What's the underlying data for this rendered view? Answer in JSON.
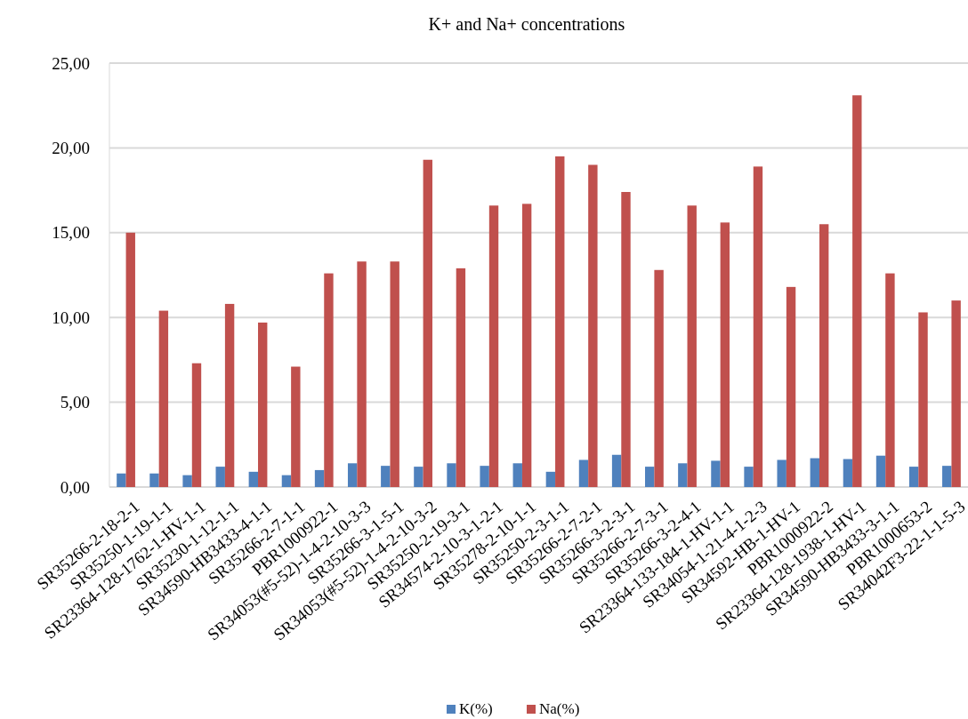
{
  "chart_data": {
    "type": "bar",
    "title": "K+ and Na+ concentrations",
    "categories": [
      "SR35266-2-18-2-1",
      "SR35250-1-19-1-1",
      "SR23364-128-1762-1-HV-1-1",
      "SR35230-1-12-1-1",
      "SR34590-HB3433-4-1-1",
      "SR35266-2-7-1-1",
      "PBR1000922-1",
      "SR34053(#5-52)-1-4-2-10-3-3",
      "SR35266-3-1-5-1",
      "SR34053(#5-52)-1-4-2-10-3-2",
      "SR35250-2-19-3-1",
      "SR34574-2-10-3-1-2-1",
      "SR35278-2-10-1-1",
      "SR35250-2-3-1-1",
      "SR35266-2-7-2-1",
      "SR35266-3-2-3-1",
      "SR35266-2-7-3-1",
      "SR35266-3-2-4-1",
      "SR23364-133-184-1-HV-1-1",
      "SR34054-1-21-4-1-2-3",
      "SR34592-HB-1-HV-1",
      "PBR1000922-2",
      "SR23364-128-1938-1-HV-1",
      "SR34590-HB3433-3-1-1",
      "PBR1000653-2",
      "SR34042F3-22-1-1-5-3"
    ],
    "series": [
      {
        "name": "K(%)",
        "color": "#4f81bd",
        "values": [
          0.8,
          0.8,
          0.7,
          1.2,
          0.9,
          0.7,
          1.0,
          1.4,
          1.25,
          1.2,
          1.4,
          1.25,
          1.4,
          0.9,
          1.6,
          1.9,
          1.2,
          1.4,
          1.55,
          1.2,
          1.6,
          1.7,
          1.65,
          1.85,
          1.2,
          1.25
        ]
      },
      {
        "name": "Na(%)",
        "color": "#c0504d",
        "values": [
          15.0,
          10.4,
          7.3,
          10.8,
          9.7,
          7.1,
          12.6,
          13.3,
          13.3,
          19.3,
          12.9,
          16.6,
          16.7,
          19.5,
          19.0,
          17.4,
          12.8,
          16.6,
          15.6,
          18.9,
          11.8,
          15.5,
          23.1,
          12.6,
          10.3,
          11.0
        ]
      }
    ],
    "ylim": [
      0,
      25
    ],
    "yticks": [
      {
        "value": 0,
        "label": "0,00"
      },
      {
        "value": 5,
        "label": "5,00"
      },
      {
        "value": 10,
        "label": "10,00"
      },
      {
        "value": 15,
        "label": "15,00"
      },
      {
        "value": 20,
        "label": "20,00"
      },
      {
        "value": 25,
        "label": "25,00"
      }
    ],
    "grid": "y",
    "legend": "bottom"
  }
}
